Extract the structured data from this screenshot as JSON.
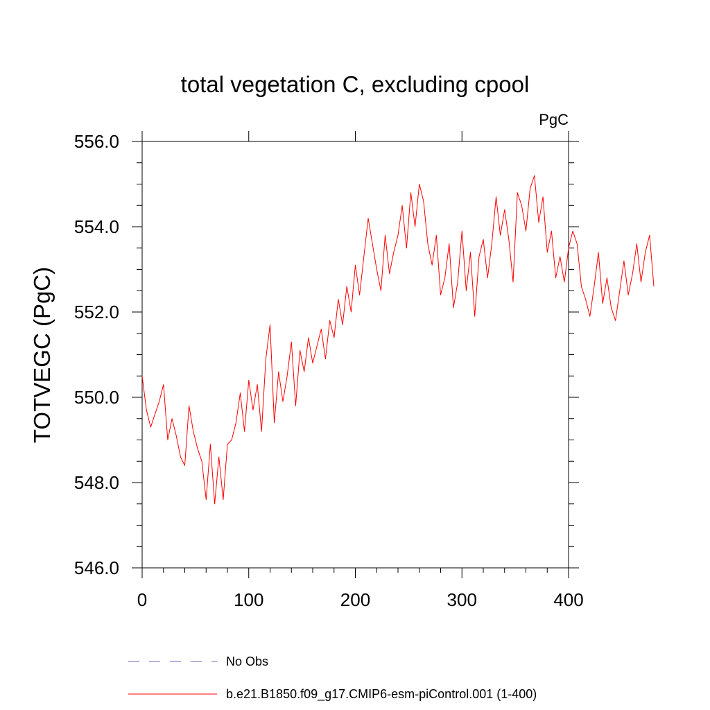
{
  "chart_data": {
    "type": "line",
    "title": "total vegetation C, excluding cpool",
    "units_label": "PgC",
    "ylabel": "TOTVEGC  (PgC)",
    "xlabel": "",
    "xlim": [
      0,
      400
    ],
    "ylim": [
      546.0,
      556.0
    ],
    "x_ticks": [
      0,
      100,
      200,
      300,
      400
    ],
    "x_tick_labels": [
      "0",
      "100",
      "200",
      "300",
      "400"
    ],
    "y_ticks": [
      546.0,
      548.0,
      550.0,
      552.0,
      554.0,
      556.0
    ],
    "y_tick_labels": [
      "546.0",
      "548.0",
      "550.0",
      "552.0",
      "554.0",
      "556.0"
    ],
    "grid": false,
    "legend": [
      {
        "label": "No Obs",
        "color": "#6f63b8",
        "style": "dashed"
      },
      {
        "label": "b.e21.B1850.f09_g17.CMIP6-esm-piControl.001 (1-400)",
        "color": "#ff0000",
        "style": "solid"
      }
    ],
    "series": [
      {
        "name": "b.e21.B1850.f09_g17.CMIP6-esm-piControl.001 (1-400)",
        "color": "#ff0000",
        "x_start": 0,
        "x_step": 4,
        "values": [
          550.5,
          549.7,
          549.3,
          549.6,
          549.9,
          550.3,
          549.0,
          549.5,
          549.1,
          548.6,
          548.4,
          549.8,
          549.2,
          548.8,
          548.5,
          547.6,
          548.9,
          547.5,
          548.6,
          547.6,
          548.9,
          549.0,
          549.4,
          550.1,
          549.2,
          550.4,
          549.7,
          550.3,
          549.2,
          550.9,
          551.7,
          549.4,
          550.6,
          549.9,
          550.5,
          551.3,
          549.8,
          551.1,
          550.6,
          551.4,
          550.8,
          551.2,
          551.6,
          550.9,
          551.8,
          551.4,
          552.3,
          551.7,
          552.6,
          552.0,
          553.1,
          552.4,
          553.3,
          554.2,
          553.6,
          553.0,
          552.5,
          553.8,
          552.9,
          553.4,
          553.8,
          554.5,
          553.5,
          554.8,
          554.0,
          555.0,
          554.6,
          553.6,
          553.1,
          553.8,
          552.4,
          552.8,
          553.6,
          552.1,
          552.7,
          553.9,
          552.5,
          553.4,
          551.9,
          553.3,
          553.7,
          552.8,
          553.6,
          554.7,
          553.8,
          554.4,
          553.7,
          552.7,
          554.8,
          554.5,
          553.9,
          554.9,
          555.2,
          554.1,
          554.7,
          553.4,
          553.9,
          552.8,
          553.3,
          552.7,
          553.5,
          553.9,
          553.6,
          552.6,
          552.3,
          551.9,
          552.6,
          553.4,
          552.2,
          552.8,
          552.1,
          551.8,
          552.5,
          553.2,
          552.4,
          552.9,
          553.6,
          552.7,
          553.4,
          553.8,
          552.6
        ]
      }
    ]
  }
}
